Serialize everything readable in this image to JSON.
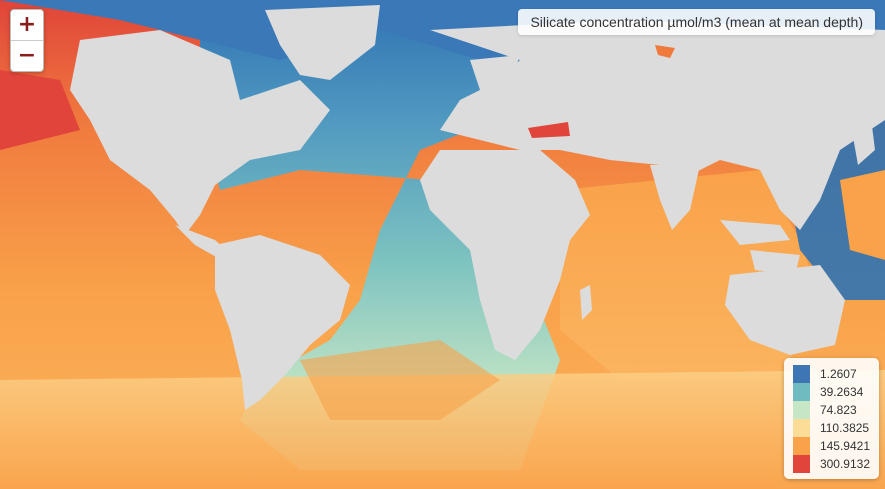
{
  "map": {
    "title": "Silicate concentration µmol/m3 (mean at mean depth)",
    "zoom_in_label": "+",
    "zoom_out_label": "−",
    "colors": {
      "land": "#dcdcdc",
      "deep_blue": "#2f73b3",
      "teal": "#6fbbc0",
      "pale_green": "#c6e7c6",
      "pale_yellow": "#fbdd98",
      "orange": "#f9a24a",
      "red": "#e0443a"
    },
    "legend": [
      {
        "label": "1.2607",
        "color": "#3e75b3"
      },
      {
        "label": "39.2634",
        "color": "#6fbbc0"
      },
      {
        "label": "74.823",
        "color": "#c6e7c6"
      },
      {
        "label": "110.3825",
        "color": "#fbdd98"
      },
      {
        "label": "145.9421",
        "color": "#f9a24a"
      },
      {
        "label": "300.9132",
        "color": "#e0443a"
      }
    ]
  }
}
